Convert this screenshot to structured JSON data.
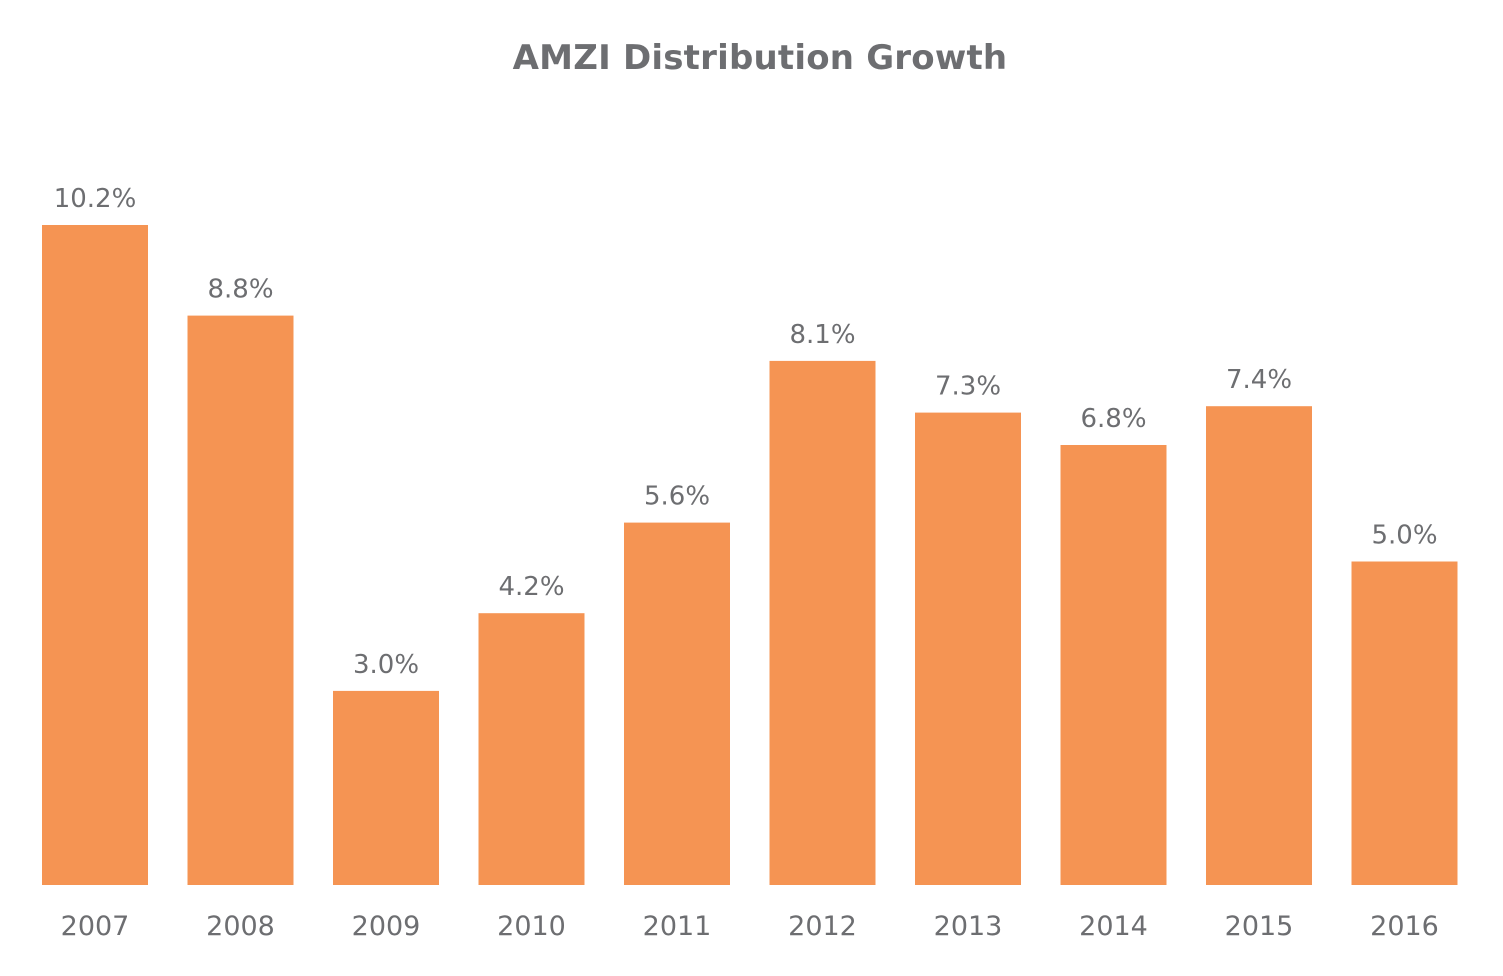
{
  "chart_data": {
    "type": "bar",
    "title": "AMZI Distribution Growth",
    "categories": [
      "2007",
      "2008",
      "2009",
      "2010",
      "2011",
      "2012",
      "2013",
      "2014",
      "2015",
      "2016"
    ],
    "values": [
      10.2,
      8.8,
      3.0,
      4.2,
      5.6,
      8.1,
      7.3,
      6.8,
      7.4,
      5.0
    ],
    "value_labels": [
      "10.2%",
      "8.8%",
      "3.0%",
      "4.2%",
      "5.6%",
      "8.1%",
      "7.3%",
      "6.8%",
      "7.4%",
      "5.0%"
    ],
    "xlabel": "",
    "ylabel": "",
    "ylim": [
      0,
      10.2
    ],
    "grid": false,
    "legend": "none",
    "bar_color": "#f59453",
    "text_color": "#6d6e71"
  }
}
